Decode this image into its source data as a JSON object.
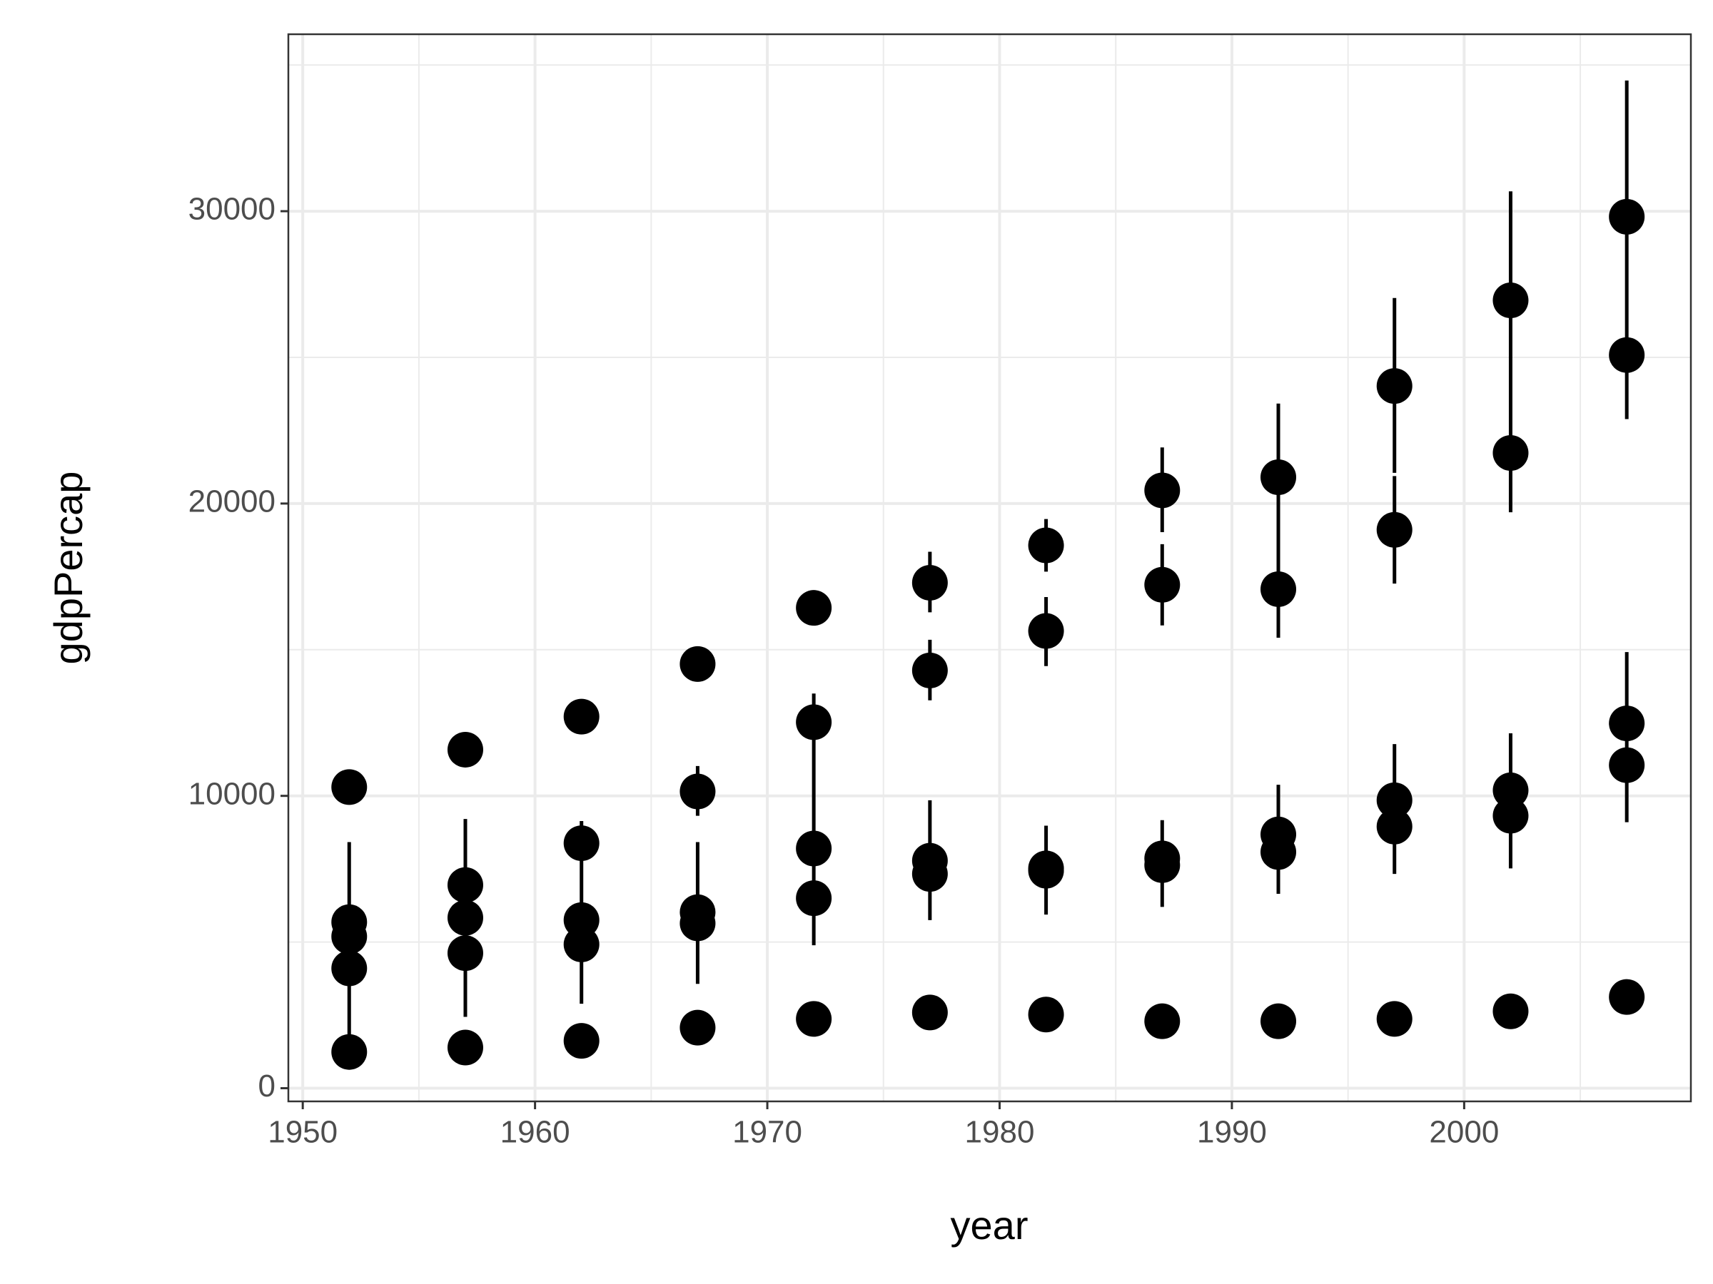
{
  "chart_data": {
    "type": "pointrange",
    "x_label": "year",
    "y_label": "gdpPercap",
    "xlim": [
      1949.38,
      2009.76
    ],
    "ylim": [
      -451,
      36053
    ],
    "xticks": [
      1950,
      1960,
      1970,
      1980,
      1990,
      2000
    ],
    "yticks": [
      0,
      10000,
      20000,
      30000
    ],
    "grid": true,
    "color": "#000000",
    "points": {
      "x": [
        1952,
        1952,
        1952,
        1952,
        1952,
        1957,
        1957,
        1957,
        1957,
        1957,
        1962,
        1962,
        1962,
        1962,
        1962,
        1967,
        1967,
        1967,
        1967,
        1967,
        1972,
        1972,
        1972,
        1972,
        1972,
        1977,
        1977,
        1977,
        1977,
        1977,
        1982,
        1982,
        1982,
        1982,
        1982,
        1987,
        1987,
        1987,
        1987,
        1987,
        1992,
        1992,
        1992,
        1992,
        1992,
        1997,
        1997,
        1997,
        1997,
        1997,
        2002,
        2002,
        2002,
        2002,
        2002,
        2007,
        2007,
        2007,
        2007,
        2007
      ],
      "y": [
        10300,
        5680,
        5190,
        4100,
        1240,
        11580,
        6950,
        5830,
        4620,
        1390,
        12710,
        8380,
        5750,
        4920,
        1620,
        14510,
        10150,
        6020,
        5640,
        2070,
        16430,
        12520,
        8200,
        6500,
        2370,
        17290,
        14290,
        7780,
        7330,
        2590,
        18570,
        15640,
        7520,
        7440,
        2520,
        20450,
        17220,
        7860,
        7630,
        2290,
        20900,
        17070,
        8680,
        8080,
        2290,
        24020,
        19100,
        9850,
        8950,
        2370,
        26950,
        21730,
        10190,
        9320,
        2630,
        29810,
        25080,
        12480,
        11050,
        3120
      ]
    },
    "error_bars": {
      "x": [
        1952,
        1957,
        1962,
        1967,
        1967,
        1972,
        1977,
        1977,
        1977,
        1982,
        1982,
        1982,
        1987,
        1987,
        1987,
        1992,
        1992,
        1997,
        1997,
        1997,
        2002,
        2002,
        2007,
        2007
      ],
      "ymin": [
        1240,
        2440,
        2890,
        9320,
        3570,
        4890,
        16280,
        13270,
        5750,
        17670,
        14440,
        5940,
        19020,
        15830,
        6200,
        15410,
        6650,
        21050,
        17260,
        7330,
        19700,
        7520,
        22890,
        9100
      ],
      "ymax": [
        8420,
        9210,
        9140,
        11020,
        8420,
        13500,
        18350,
        15340,
        9850,
        19470,
        16800,
        8980,
        21920,
        18610,
        9170,
        23420,
        10380,
        27030,
        20940,
        11770,
        30680,
        12140,
        34470,
        14920
      ]
    }
  }
}
